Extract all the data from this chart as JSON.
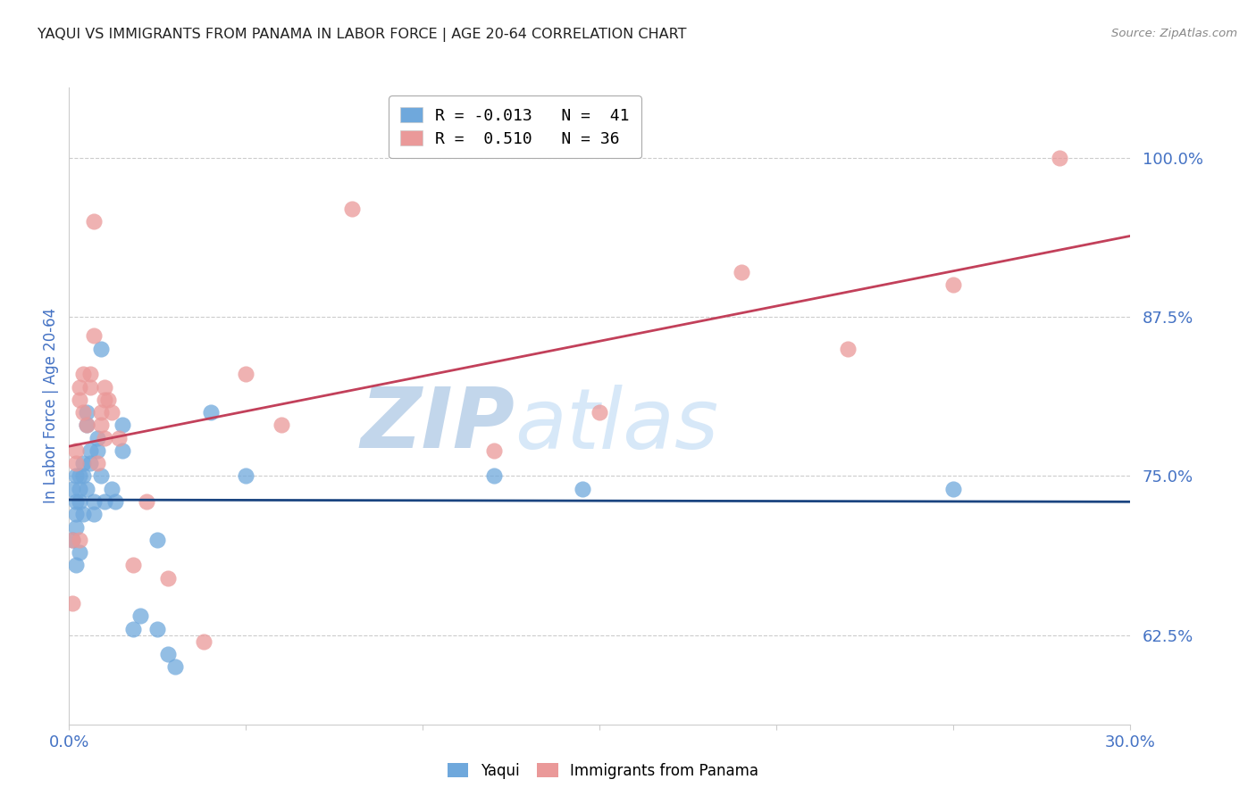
{
  "title": "YAQUI VS IMMIGRANTS FROM PANAMA IN LABOR FORCE | AGE 20-64 CORRELATION CHART",
  "source": "Source: ZipAtlas.com",
  "ylabel": "In Labor Force | Age 20-64",
  "xlim": [
    0.0,
    0.3
  ],
  "ylim": [
    0.555,
    1.055
  ],
  "yticks": [
    0.625,
    0.75,
    0.875,
    1.0
  ],
  "ytick_labels": [
    "62.5%",
    "75.0%",
    "87.5%",
    "100.0%"
  ],
  "xticks": [
    0.0,
    0.05,
    0.1,
    0.15,
    0.2,
    0.25,
    0.3
  ],
  "xtick_labels": [
    "0.0%",
    "",
    "",
    "",
    "",
    "",
    "30.0%"
  ],
  "blue_color": "#6fa8dc",
  "pink_color": "#ea9999",
  "blue_line_color": "#1a4480",
  "pink_line_color": "#c2405a",
  "watermark_zip": "ZIP",
  "watermark_atlas": "atlas",
  "watermark_color": "#cfe2f3",
  "yaqui_x": [
    0.001,
    0.001,
    0.002,
    0.002,
    0.002,
    0.002,
    0.002,
    0.003,
    0.003,
    0.003,
    0.003,
    0.004,
    0.004,
    0.004,
    0.005,
    0.005,
    0.005,
    0.006,
    0.006,
    0.007,
    0.007,
    0.008,
    0.008,
    0.009,
    0.009,
    0.01,
    0.012,
    0.013,
    0.015,
    0.015,
    0.018,
    0.02,
    0.025,
    0.025,
    0.028,
    0.03,
    0.04,
    0.05,
    0.12,
    0.145,
    0.25
  ],
  "yaqui_y": [
    0.74,
    0.7,
    0.75,
    0.73,
    0.72,
    0.68,
    0.71,
    0.75,
    0.74,
    0.73,
    0.69,
    0.76,
    0.75,
    0.72,
    0.74,
    0.8,
    0.79,
    0.77,
    0.76,
    0.73,
    0.72,
    0.78,
    0.77,
    0.85,
    0.75,
    0.73,
    0.74,
    0.73,
    0.79,
    0.77,
    0.63,
    0.64,
    0.7,
    0.63,
    0.61,
    0.6,
    0.8,
    0.75,
    0.75,
    0.74,
    0.74
  ],
  "panama_x": [
    0.001,
    0.001,
    0.002,
    0.002,
    0.003,
    0.003,
    0.004,
    0.004,
    0.005,
    0.006,
    0.006,
    0.007,
    0.008,
    0.009,
    0.009,
    0.01,
    0.01,
    0.01,
    0.011,
    0.012,
    0.014,
    0.018,
    0.022,
    0.028,
    0.038,
    0.05,
    0.06,
    0.08,
    0.12,
    0.15,
    0.19,
    0.22,
    0.25,
    0.28,
    0.003,
    0.007
  ],
  "panama_y": [
    0.7,
    0.65,
    0.77,
    0.76,
    0.82,
    0.81,
    0.83,
    0.8,
    0.79,
    0.83,
    0.82,
    0.95,
    0.76,
    0.8,
    0.79,
    0.82,
    0.81,
    0.78,
    0.81,
    0.8,
    0.78,
    0.68,
    0.73,
    0.67,
    0.62,
    0.83,
    0.79,
    0.96,
    0.77,
    0.8,
    0.91,
    0.85,
    0.9,
    1.0,
    0.7,
    0.86
  ],
  "background_color": "#ffffff",
  "grid_color": "#cccccc",
  "axis_color": "#cccccc",
  "title_color": "#222222",
  "ylabel_color": "#4472c4",
  "tick_color": "#4472c4",
  "legend_border_color": "#aaaaaa",
  "source_color": "#888888"
}
